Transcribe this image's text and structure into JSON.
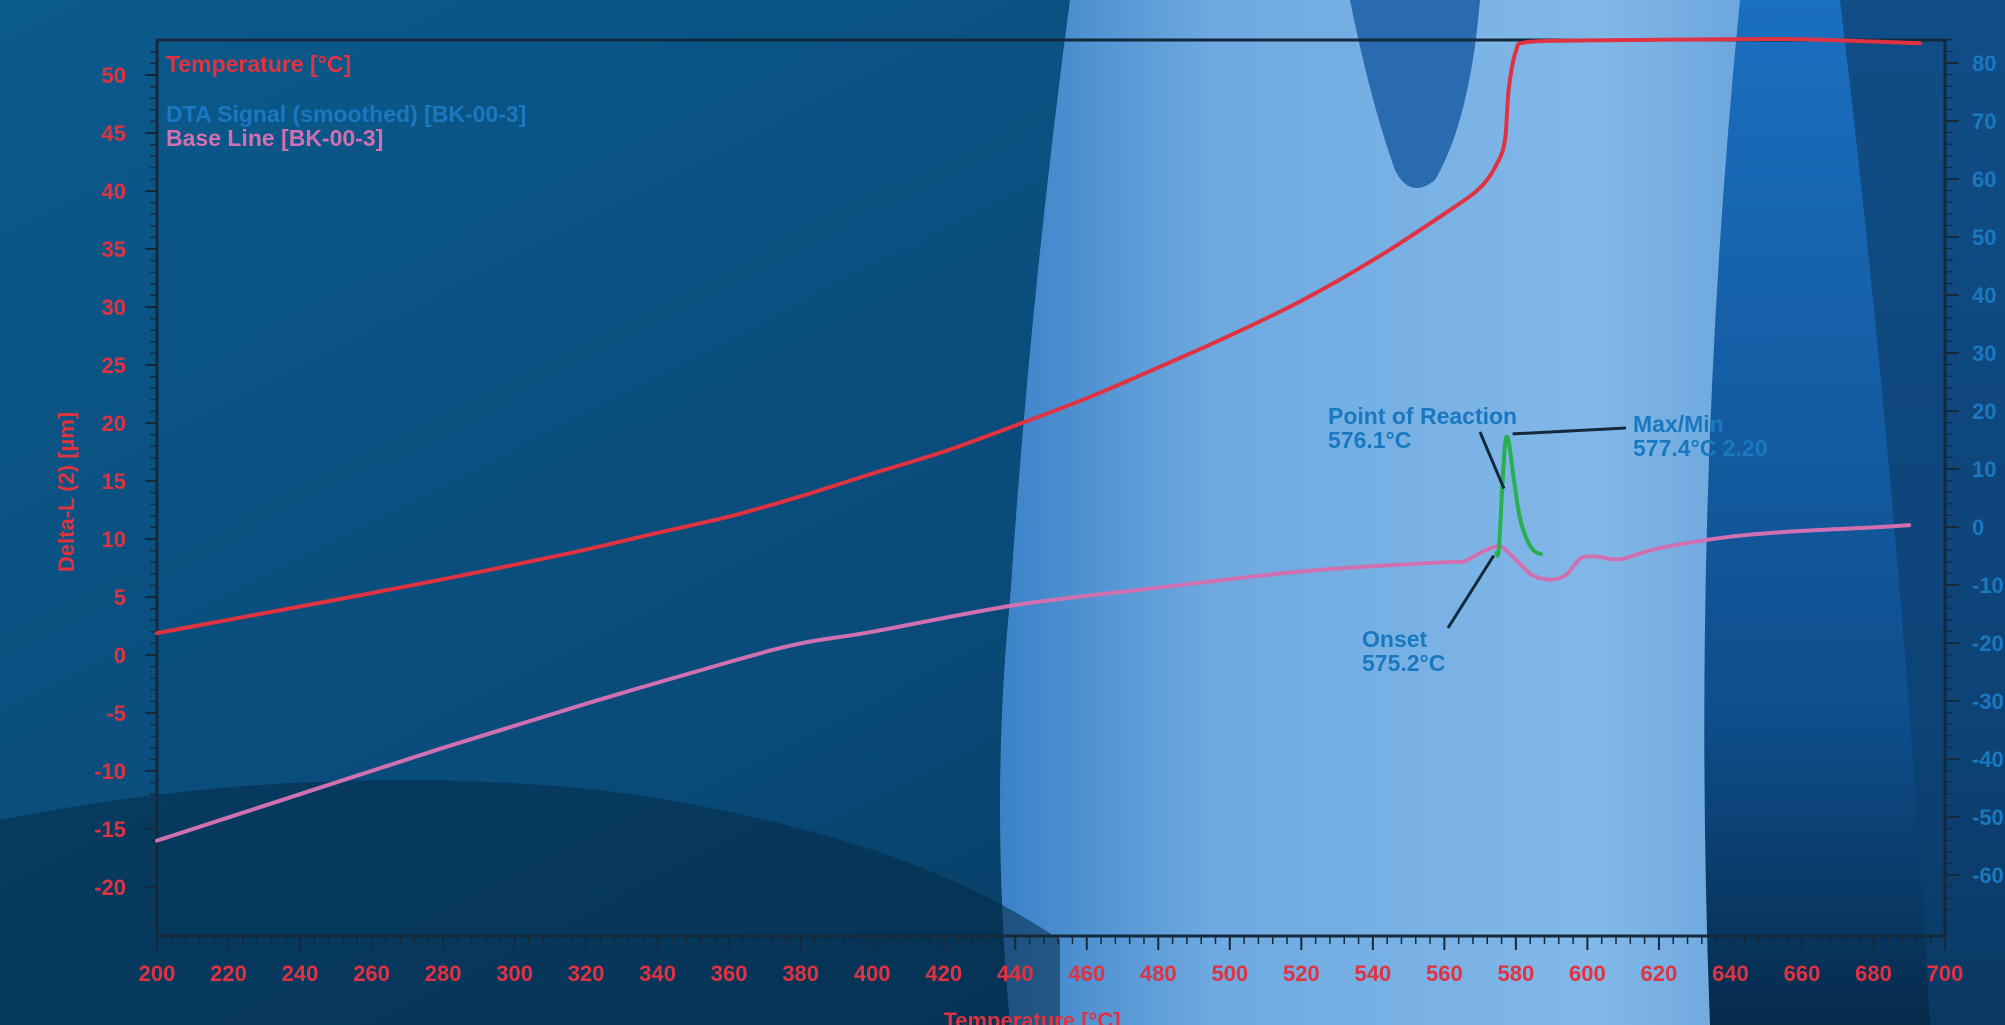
{
  "chart_data": {
    "type": "line",
    "xlabel": "Temperature [°C]",
    "ylabel": "Delta-L (2) [µm]",
    "xlim": [
      200,
      700
    ],
    "ylim_left": [
      -24,
      53
    ],
    "ylim_right": [
      -70,
      86
    ],
    "x_ticks": [
      200,
      220,
      240,
      260,
      280,
      300,
      320,
      340,
      360,
      380,
      400,
      420,
      440,
      460,
      480,
      500,
      520,
      540,
      560,
      580,
      600,
      620,
      640,
      660,
      680,
      700
    ],
    "y_ticks_left": [
      -20,
      -15,
      -10,
      -5,
      0,
      5,
      10,
      15,
      20,
      25,
      30,
      35,
      40,
      45,
      50
    ],
    "y_ticks_right": [
      -60,
      -50,
      -40,
      -30,
      -20,
      -10,
      0,
      10,
      20,
      30,
      40,
      50,
      60,
      70,
      80
    ],
    "y_tick_labels_right": [
      "-60",
      "-50",
      "-40",
      "-30",
      "-20",
      "-10",
      "0",
      "10",
      "20",
      "30",
      "40",
      "50",
      "60",
      "70",
      "80"
    ],
    "legend": [
      {
        "label": "Temperature [°C]",
        "color": "#e03240"
      },
      {
        "label": "DTA Signal (smoothed) [BK-00-3]",
        "color": "#1a78c0"
      },
      {
        "label": "Base Line [BK-00-3]",
        "color": "#d070b0"
      }
    ],
    "legend_position": "top-left",
    "grid": false,
    "series": [
      {
        "name": "Temperature [°C]",
        "color": "#e03240",
        "x": [
          200,
          220,
          240,
          260,
          280,
          300,
          320,
          340,
          360,
          380,
          400,
          420,
          440,
          460,
          480,
          500,
          520,
          540,
          560,
          570,
          575,
          577,
          578,
          580,
          583,
          600,
          620,
          640,
          660,
          680,
          693
        ],
        "y": [
          -18.3,
          -16,
          -13.7,
          -11.4,
          -9,
          -6.5,
          -3.9,
          -1,
          1.8,
          5.3,
          9.2,
          13,
          17.5,
          22.2,
          27.5,
          33,
          39,
          46,
          54,
          58.5,
          63,
          67,
          75.5,
          82,
          83.6,
          83.9,
          84,
          84.1,
          84.1,
          83.7,
          83.4
        ]
      },
      {
        "name": "Base Line [BK-00-3]",
        "color": "#d070b0",
        "x": [
          200,
          240,
          280,
          320,
          360,
          380,
          400,
          440,
          480,
          520,
          560,
          565,
          570,
          575,
          578,
          582,
          585,
          590,
          594,
          598,
          602,
          606,
          610,
          620,
          640,
          660,
          680,
          690
        ],
        "y": [
          -16,
          -12,
          -8,
          -4.2,
          -0.6,
          1,
          2,
          4.3,
          5.8,
          7.2,
          8,
          8,
          8.8,
          9.4,
          8.8,
          7.6,
          6.8,
          6.5,
          6.9,
          8.3,
          8.5,
          8.3,
          8.3,
          9.2,
          10.2,
          10.7,
          11,
          11.2
        ]
      },
      {
        "name": "DTA Signal (smoothed) [BK-00-3]",
        "color": "#28b050",
        "x": [
          574.5,
          575.2,
          576.1,
          576.8,
          577.4,
          578.2,
          579.5,
          581,
          583,
          585,
          587
        ],
        "y": [
          8.8,
          9,
          14,
          17.5,
          18.8,
          18,
          15,
          12,
          10,
          9,
          8.7
        ]
      }
    ],
    "annotations": [
      {
        "label": "Point of Reaction",
        "value": "576.1°C",
        "x": 576.1,
        "y": 14
      },
      {
        "label": "Max/Min",
        "value": "577.4°C  2.20",
        "x": 577.4,
        "y": 18.8
      },
      {
        "label": "Onset",
        "value": "575.2°C",
        "x": 575.2,
        "y": 9
      }
    ]
  }
}
